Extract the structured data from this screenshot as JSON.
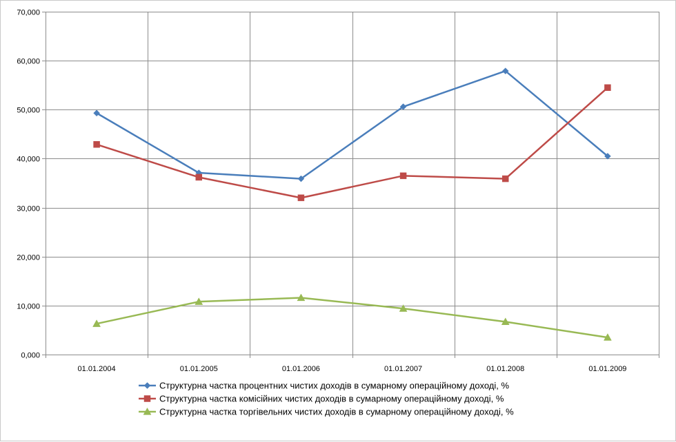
{
  "chart_data": {
    "type": "line",
    "title": "",
    "xlabel": "",
    "ylabel": "",
    "categories": [
      "01.01.2004",
      "01.01.2005",
      "01.01.2006",
      "01.01.2007",
      "01.01.2008",
      "01.01.2009"
    ],
    "ylim": [
      0,
      70
    ],
    "y_ticks": [
      0,
      10,
      20,
      30,
      40,
      50,
      60,
      70
    ],
    "y_tick_labels": [
      "0,000",
      "10,000",
      "20,000",
      "30,000",
      "40,000",
      "50,000",
      "60,000",
      "70,000"
    ],
    "grid": true,
    "legend_position": "bottom",
    "series": [
      {
        "name": "Структурна частка процентних чистих доходів в сумарному операційному доході, %",
        "color": "#4a7ebb",
        "marker": "diamond",
        "values": [
          49.3,
          37.1,
          35.9,
          50.6,
          57.9,
          40.5
        ]
      },
      {
        "name": "Структурна частка комісійних чистих доходів в сумарному операційному доході, %",
        "color": "#be4b48",
        "marker": "square",
        "values": [
          42.9,
          36.2,
          32.0,
          36.5,
          35.9,
          54.5
        ]
      },
      {
        "name": "Структурна частка торгівельних чистих доходів в сумарному операційному доході, %",
        "color": "#98b954",
        "marker": "triangle",
        "values": [
          6.3,
          10.8,
          11.6,
          9.4,
          6.7,
          3.5
        ]
      }
    ]
  }
}
